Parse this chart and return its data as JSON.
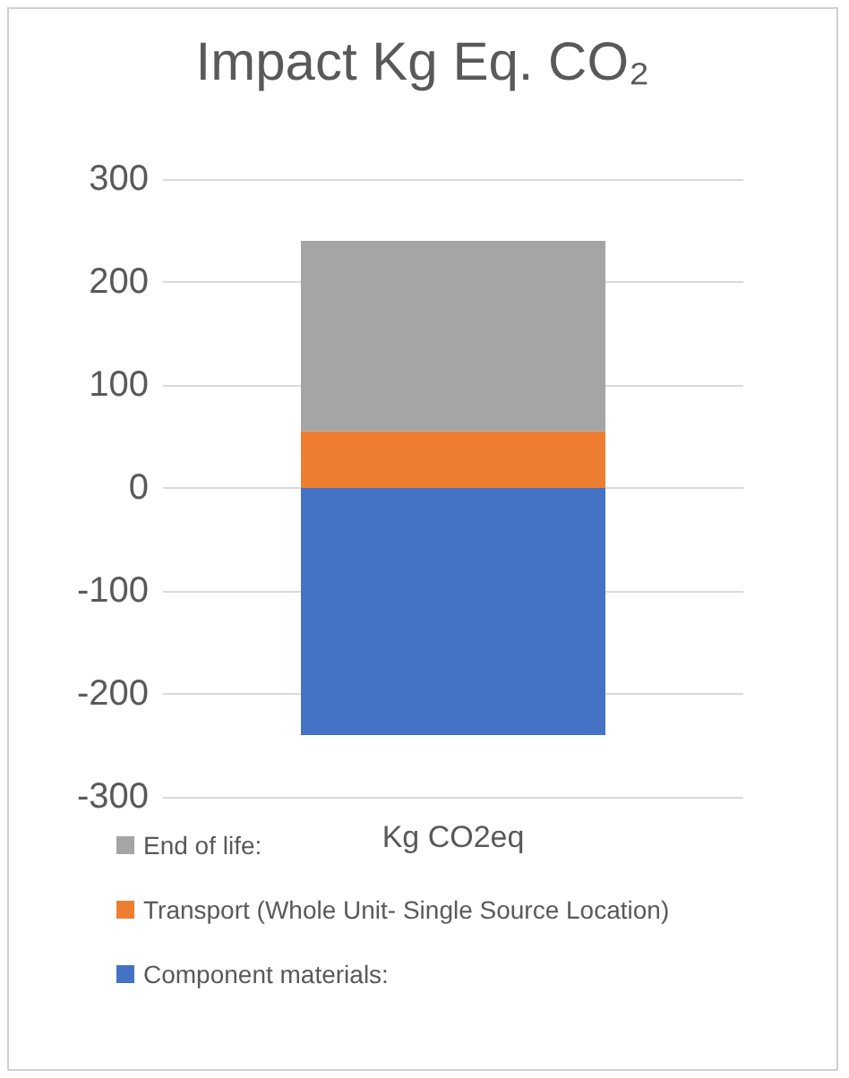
{
  "chart_data": {
    "type": "bar",
    "title": "Impact Kg Eq. CO₂",
    "categories": [
      "Kg CO2eq"
    ],
    "stacked": true,
    "legend": "bottom left",
    "grid": "y",
    "ylim": [
      -300,
      300
    ],
    "yticks": [
      -300,
      -200,
      -100,
      0,
      100,
      200,
      300
    ],
    "series": [
      {
        "name": "Component materials:",
        "color": "#4472c4",
        "values": [
          -240
        ]
      },
      {
        "name": "Transport (Whole Unit- Single Source Location)",
        "color": "#ed7d31",
        "values": [
          55
        ]
      },
      {
        "name": "End of life:",
        "color": "#a5a5a5",
        "values": [
          185
        ]
      }
    ]
  }
}
